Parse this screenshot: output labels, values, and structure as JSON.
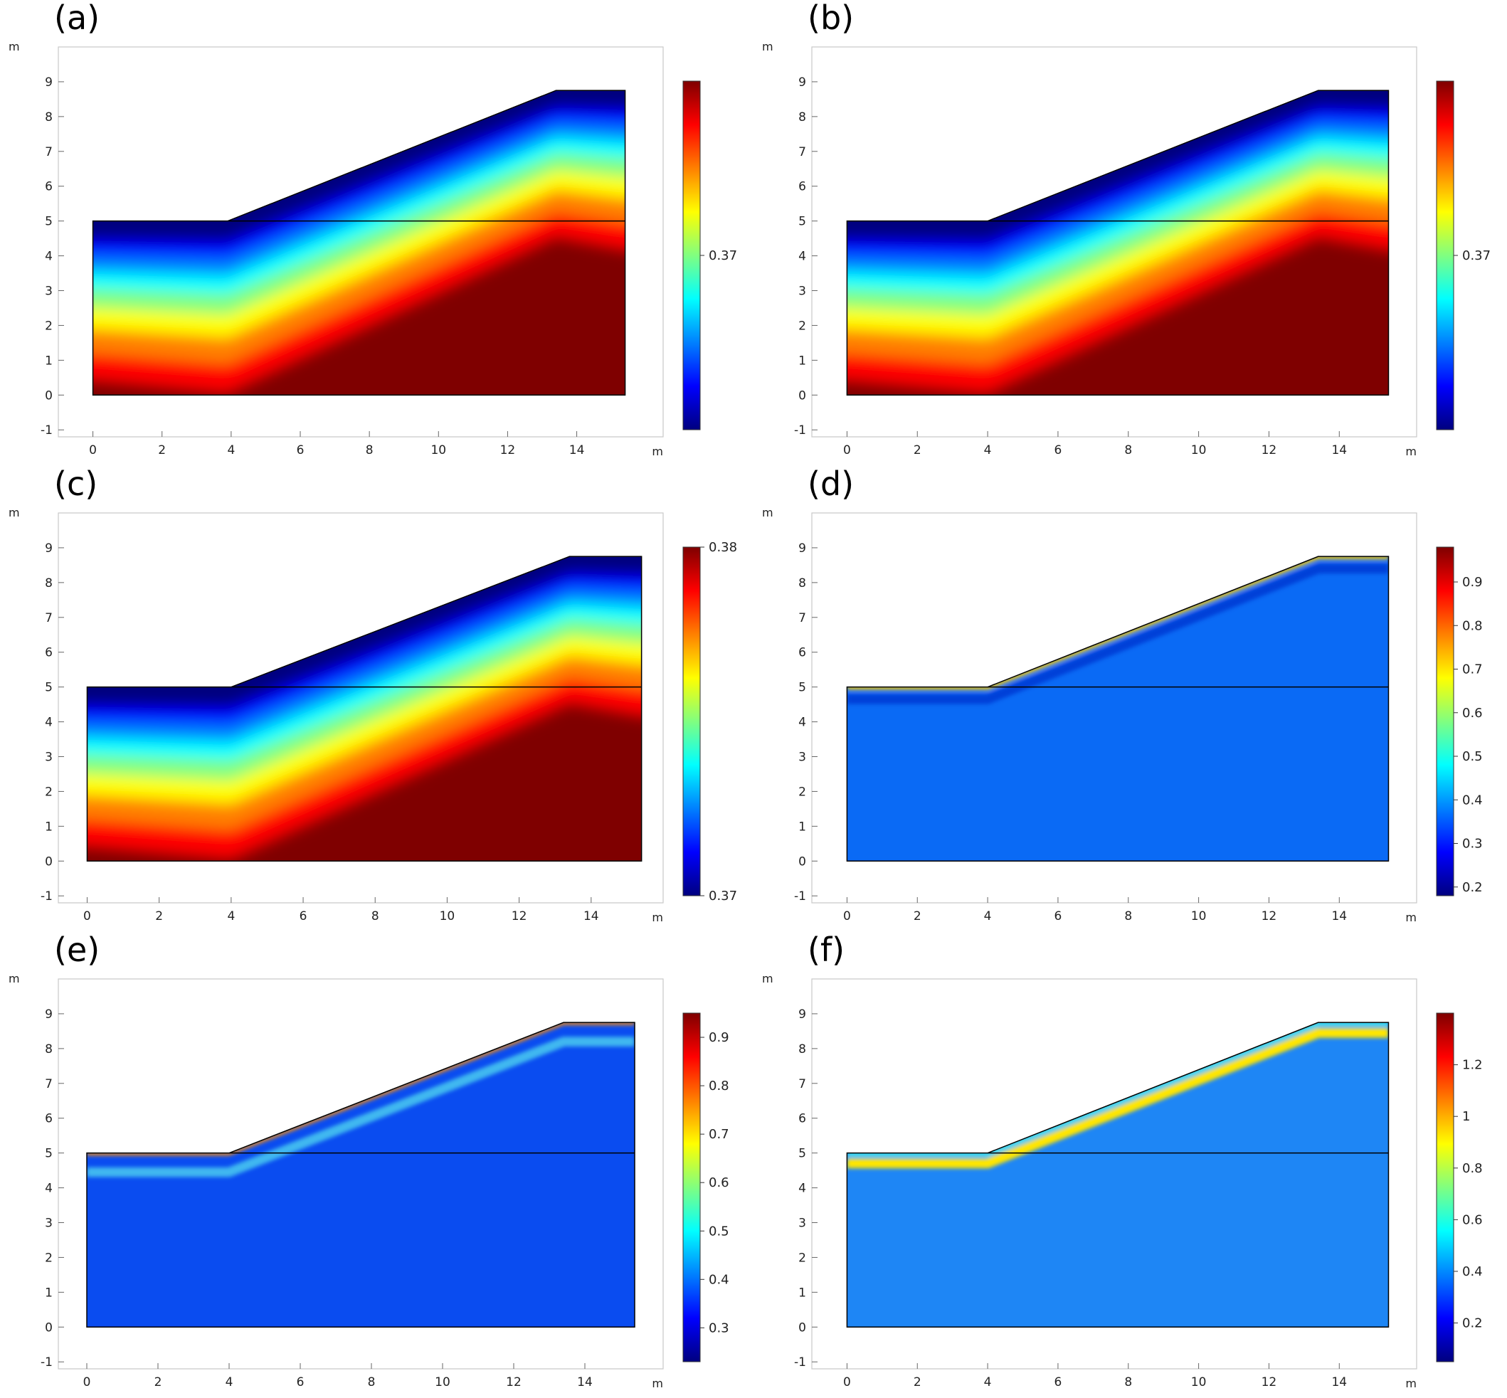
{
  "colormaps": {
    "rainbow": [
      "#00007f",
      "#0000ff",
      "#0080ff",
      "#00ffff",
      "#80ff80",
      "#ffff00",
      "#ff8000",
      "#ff0000",
      "#7f0000"
    ]
  },
  "colors": {
    "domain_outline": "#000000",
    "frame": "#c8c8c8",
    "low_band_blue": "#0a5ef7",
    "panel_f_blue": "#1e7cf5"
  },
  "chart_data": [
    {
      "type": "heatmap",
      "panel_label": "(a)",
      "field_style": "smooth",
      "x_unit": "m",
      "y_unit": "m",
      "xlim": [
        -1,
        16.5
      ],
      "ylim": [
        -1.2,
        10
      ],
      "x_ticks": [
        "0",
        "2",
        "4",
        "6",
        "8",
        "10",
        "12",
        "14"
      ],
      "y_ticks": [
        "-1",
        "0",
        "1",
        "2",
        "3",
        "4",
        "5",
        "6",
        "7",
        "8",
        "9"
      ],
      "geometry": {
        "outline_x": [
          0,
          15.4,
          15.4,
          13.4,
          3.9,
          0
        ],
        "outline_y": [
          0,
          0,
          8.75,
          8.75,
          5,
          5
        ],
        "interface_y": 5
      },
      "colorbar": {
        "labels": [
          {
            "text": "0.37",
            "frac": 0.5
          }
        ]
      }
    },
    {
      "type": "heatmap",
      "panel_label": "(b)",
      "field_style": "smooth",
      "x_unit": "m",
      "y_unit": "m",
      "xlim": [
        -1,
        16.2
      ],
      "ylim": [
        -1.2,
        10
      ],
      "x_ticks": [
        "0",
        "2",
        "4",
        "6",
        "8",
        "10",
        "12",
        "14"
      ],
      "y_ticks": [
        "-1",
        "0",
        "1",
        "2",
        "3",
        "4",
        "5",
        "6",
        "7",
        "8",
        "9"
      ],
      "geometry": {
        "outline_x": [
          0,
          15.4,
          15.4,
          13.4,
          4.0,
          0
        ],
        "outline_y": [
          0,
          0,
          8.75,
          8.75,
          5,
          5
        ],
        "interface_y": 5
      },
      "colorbar": {
        "labels": [
          {
            "text": "0.37",
            "frac": 0.5
          }
        ]
      }
    },
    {
      "type": "heatmap",
      "panel_label": "(c)",
      "field_style": "smooth",
      "x_unit": "m",
      "y_unit": "m",
      "xlim": [
        -0.8,
        16
      ],
      "ylim": [
        -1.2,
        10
      ],
      "x_ticks": [
        "0",
        "2",
        "4",
        "6",
        "8",
        "10",
        "12",
        "14"
      ],
      "y_ticks": [
        "-1",
        "0",
        "1",
        "2",
        "3",
        "4",
        "5",
        "6",
        "7",
        "8",
        "9"
      ],
      "geometry": {
        "outline_x": [
          0,
          15.4,
          15.4,
          13.4,
          4.0,
          0
        ],
        "outline_y": [
          0,
          0,
          8.75,
          8.75,
          5,
          5
        ],
        "interface_y": 5
      },
      "colorbar": {
        "labels": [
          {
            "text": "0.38",
            "frac": 0.0
          },
          {
            "text": "0.37",
            "frac": 1.0
          }
        ]
      }
    },
    {
      "type": "heatmap",
      "panel_label": "(d)",
      "field_style": "band",
      "band": {
        "base": "#0a6af5",
        "inner": "#0040d8",
        "edge": "#ffcc00",
        "edge_width": 0.12,
        "inner_depth": 0.35
      },
      "x_unit": "m",
      "y_unit": "m",
      "xlim": [
        -1,
        16.2
      ],
      "ylim": [
        -1.2,
        10
      ],
      "x_ticks": [
        "0",
        "2",
        "4",
        "6",
        "8",
        "10",
        "12",
        "14"
      ],
      "y_ticks": [
        "-1",
        "0",
        "1",
        "2",
        "3",
        "4",
        "5",
        "6",
        "7",
        "8",
        "9"
      ],
      "geometry": {
        "outline_x": [
          0,
          15.4,
          15.4,
          13.4,
          4.0,
          0
        ],
        "outline_y": [
          0,
          0,
          8.75,
          8.75,
          5,
          5
        ],
        "interface_y": 5
      },
      "colorbar": {
        "range": [
          0.18,
          0.98
        ],
        "labels": [
          {
            "text": "0.9",
            "value": 0.9
          },
          {
            "text": "0.8",
            "value": 0.8
          },
          {
            "text": "0.7",
            "value": 0.7
          },
          {
            "text": "0.6",
            "value": 0.6
          },
          {
            "text": "0.5",
            "value": 0.5
          },
          {
            "text": "0.4",
            "value": 0.4
          },
          {
            "text": "0.3",
            "value": 0.3
          },
          {
            "text": "0.2",
            "value": 0.2
          }
        ]
      }
    },
    {
      "type": "heatmap",
      "panel_label": "(e)",
      "field_style": "band",
      "band": {
        "base": "#0a4cf0",
        "inner": "#3fb8f0",
        "edge": "#ff8c00",
        "edge_width": 0.1,
        "inner_depth": 0.55
      },
      "x_unit": "m",
      "y_unit": "m",
      "xlim": [
        -0.8,
        16.2
      ],
      "ylim": [
        -1.2,
        10
      ],
      "x_ticks": [
        "0",
        "2",
        "4",
        "6",
        "8",
        "10",
        "12",
        "14"
      ],
      "y_ticks": [
        "-1",
        "0",
        "1",
        "2",
        "3",
        "4",
        "5",
        "6",
        "7",
        "8",
        "9"
      ],
      "geometry": {
        "outline_x": [
          0,
          15.4,
          15.4,
          13.4,
          4.0,
          0
        ],
        "outline_y": [
          0,
          0,
          8.75,
          8.75,
          5,
          5
        ],
        "interface_y": 5
      },
      "colorbar": {
        "range": [
          0.23,
          0.95
        ],
        "labels": [
          {
            "text": "0.9",
            "value": 0.9
          },
          {
            "text": "0.8",
            "value": 0.8
          },
          {
            "text": "0.7",
            "value": 0.7
          },
          {
            "text": "0.6",
            "value": 0.6
          },
          {
            "text": "0.5",
            "value": 0.5
          },
          {
            "text": "0.4",
            "value": 0.4
          },
          {
            "text": "0.3",
            "value": 0.3
          }
        ]
      }
    },
    {
      "type": "heatmap",
      "panel_label": "(f)",
      "field_style": "band",
      "band": {
        "base": "#1e86f5",
        "inner": "#ffe600",
        "edge": "#38d8f0",
        "edge_width": 0.2,
        "inner_depth": 0.3
      },
      "x_unit": "m",
      "y_unit": "m",
      "xlim": [
        -1,
        16.2
      ],
      "ylim": [
        -1.2,
        10
      ],
      "x_ticks": [
        "0",
        "2",
        "4",
        "6",
        "8",
        "10",
        "12",
        "14"
      ],
      "y_ticks": [
        "-1",
        "0",
        "1",
        "2",
        "3",
        "4",
        "5",
        "6",
        "7",
        "8",
        "9"
      ],
      "geometry": {
        "outline_x": [
          0,
          15.4,
          15.4,
          13.4,
          4.0,
          0
        ],
        "outline_y": [
          0,
          0,
          8.75,
          8.75,
          5,
          5
        ],
        "interface_y": 5
      },
      "colorbar": {
        "range": [
          0.05,
          1.4
        ],
        "labels": [
          {
            "text": "1.2",
            "value": 1.2
          },
          {
            "text": "1",
            "value": 1.0
          },
          {
            "text": "0.8",
            "value": 0.8
          },
          {
            "text": "0.6",
            "value": 0.6
          },
          {
            "text": "0.4",
            "value": 0.4
          },
          {
            "text": "0.2",
            "value": 0.2
          }
        ]
      }
    }
  ]
}
